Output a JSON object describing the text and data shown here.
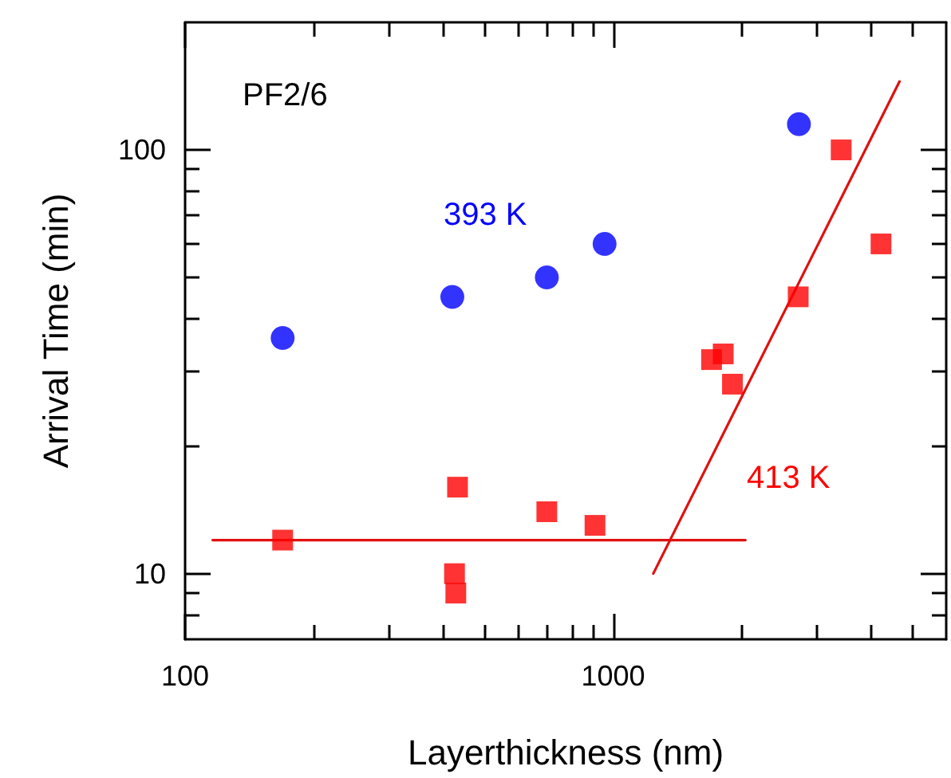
{
  "chart_data": {
    "type": "scatter",
    "xlabel": "Layerthickness (nm)",
    "ylabel": "Arrival Time (min)",
    "annotations": [
      "PF2/6"
    ],
    "log": "xy",
    "grid": false,
    "legend": false,
    "xlim": [
      100,
      6000
    ],
    "ylim": [
      7,
      200
    ],
    "xticks": [
      100,
      {
        "value": 200,
        "label": null
      },
      {
        "value": 300,
        "label": null
      },
      {
        "value": 400,
        "label": null
      },
      {
        "value": 500,
        "label": null
      },
      {
        "value": 600,
        "label": null
      },
      {
        "value": 700,
        "label": null
      },
      {
        "value": 800,
        "label": null
      },
      {
        "value": 900,
        "label": null
      },
      1000,
      {
        "value": 2000,
        "label": null
      },
      {
        "value": 3000,
        "label": null
      },
      {
        "value": 4000,
        "label": null
      },
      {
        "value": 5000,
        "label": null
      }
    ],
    "yticks": [
      {
        "value": 8,
        "label": null
      },
      {
        "value": 9,
        "label": null
      },
      10,
      {
        "value": 20,
        "label": null
      },
      {
        "value": 30,
        "label": null
      },
      {
        "value": 40,
        "label": null
      },
      {
        "value": 50,
        "label": null
      },
      {
        "value": 60,
        "label": null
      },
      {
        "value": 70,
        "label": null
      },
      {
        "value": 80,
        "label": null
      },
      {
        "value": 90,
        "label": null
      },
      100
    ],
    "series": [
      {
        "name": "393 K",
        "color": "#0000ff",
        "marker": "circle",
        "x": [
          169,
          421,
          700,
          955,
          2717
        ],
        "values": [
          36,
          45,
          50,
          60,
          115
        ]
      },
      {
        "name": "413 K",
        "color": "#ff0000",
        "marker": "square",
        "x": [
          169,
          433,
          426,
          429,
          700,
          907,
          1698,
          1808,
          1900,
          2706,
          3410,
          4225
        ],
        "values": [
          12,
          16,
          10,
          9,
          14,
          13,
          32,
          33,
          28,
          45,
          100,
          60
        ]
      },
      {
        "type": "line",
        "color": "#e01010",
        "marker": "none",
        "x": [
          116,
          2037
        ],
        "values": [
          12,
          12
        ]
      },
      {
        "type": "line",
        "color": "#e01010",
        "marker": "none",
        "x": [
          1241,
          4667
        ],
        "values": [
          10,
          145
        ]
      }
    ]
  }
}
